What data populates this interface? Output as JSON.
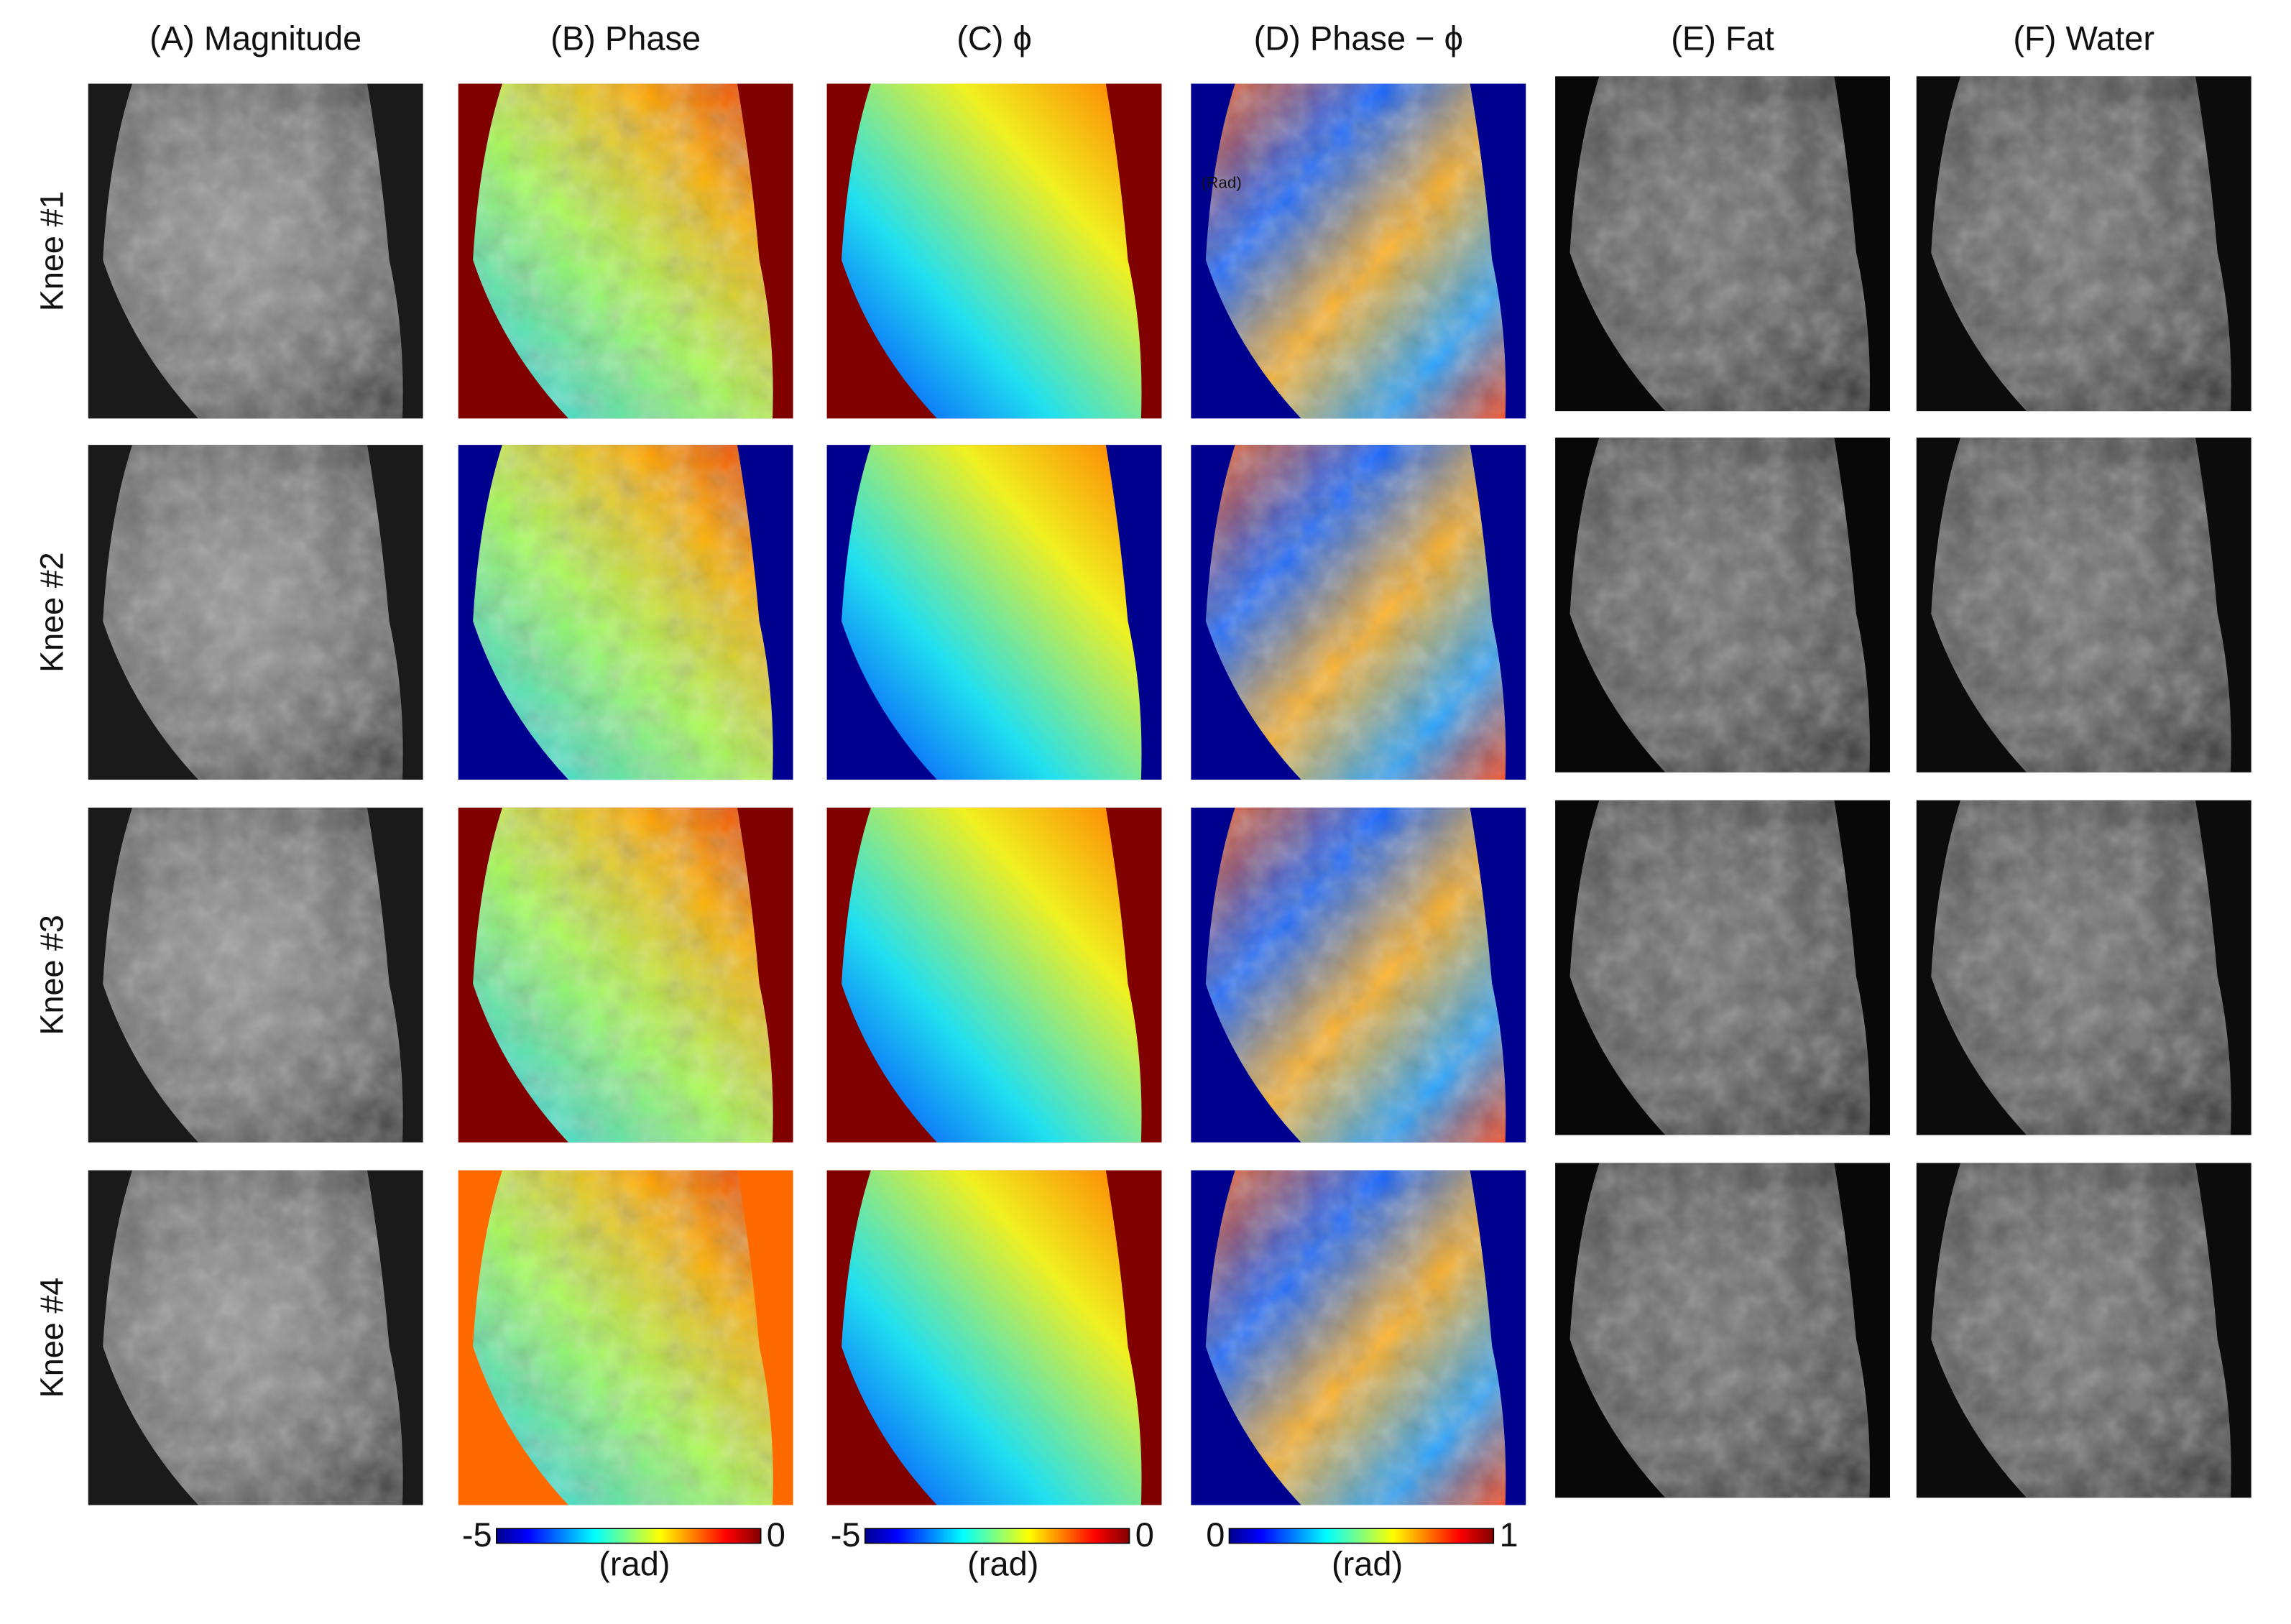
{
  "columns": [
    "(A) Magnitude",
    "(B) Phase",
    "(C) ϕ",
    "(D) Phase − ϕ",
    "(E) Fat",
    "(F) Water"
  ],
  "rows": [
    "Knee #1",
    "Knee #2",
    "Knee #3",
    "Knee #4"
  ],
  "annotation": "(Rad)",
  "colorbars": [
    {
      "min": -5,
      "max": 0,
      "label": "(rad)"
    },
    {
      "min": -5,
      "max": 0,
      "label": "(rad)"
    },
    {
      "min": 0,
      "max": 1,
      "label": "(rad)"
    }
  ]
}
